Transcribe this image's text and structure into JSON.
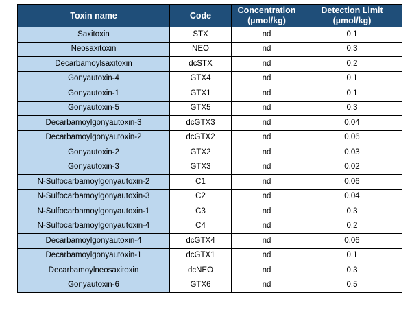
{
  "colors": {
    "header_bg": "#1F4E79",
    "header_text": "#FFFFFF",
    "name_cell_bg": "#BDD7EE",
    "border": "#000000",
    "row_bg": "#FFFFFF"
  },
  "table": {
    "headers": [
      "Toxin name",
      "Code",
      "Concentration\n(µmol/kg)",
      "Detection Limit\n(µmol/kg)"
    ],
    "rows": [
      {
        "name": "Saxitoxin",
        "code": "STX",
        "concentration": "nd",
        "detection_limit": "0.1"
      },
      {
        "name": "Neosaxitoxin",
        "code": "NEO",
        "concentration": "nd",
        "detection_limit": "0.3"
      },
      {
        "name": "Decarbamoylsaxitoxin",
        "code": "dcSTX",
        "concentration": "nd",
        "detection_limit": "0.2"
      },
      {
        "name": "Gonyautoxin-4",
        "code": "GTX4",
        "concentration": "nd",
        "detection_limit": "0.1"
      },
      {
        "name": "Gonyautoxin-1",
        "code": "GTX1",
        "concentration": "nd",
        "detection_limit": "0.1"
      },
      {
        "name": "Gonyautoxin-5",
        "code": "GTX5",
        "concentration": "nd",
        "detection_limit": "0.3"
      },
      {
        "name": "Decarbamoylgonyautoxin-3",
        "code": "dcGTX3",
        "concentration": "nd",
        "detection_limit": "0.04"
      },
      {
        "name": "Decarbamoylgonyautoxin-2",
        "code": "dcGTX2",
        "concentration": "nd",
        "detection_limit": "0.06"
      },
      {
        "name": "Gonyautoxin-2",
        "code": "GTX2",
        "concentration": "nd",
        "detection_limit": "0.03"
      },
      {
        "name": "Gonyautoxin-3",
        "code": "GTX3",
        "concentration": "nd",
        "detection_limit": "0.02"
      },
      {
        "name": "N-Sulfocarbamoylgonyautoxin-2",
        "code": "C1",
        "concentration": "nd",
        "detection_limit": "0.06"
      },
      {
        "name": "N-Sulfocarbamoylgonyautoxin-3",
        "code": "C2",
        "concentration": "nd",
        "detection_limit": "0.04"
      },
      {
        "name": "N-Sulfocarbamoylgonyautoxin-1",
        "code": "C3",
        "concentration": "nd",
        "detection_limit": "0.3"
      },
      {
        "name": "N-Sulfocarbamoylgonyautoxin-4",
        "code": "C4",
        "concentration": "nd",
        "detection_limit": "0.2"
      },
      {
        "name": "Decarbamoylgonyautoxin-4",
        "code": "dcGTX4",
        "concentration": "nd",
        "detection_limit": "0.06"
      },
      {
        "name": "Decarbamoylgonyautoxin-1",
        "code": "dcGTX1",
        "concentration": "nd",
        "detection_limit": "0.1"
      },
      {
        "name": "Decarbamoylneosaxitoxin",
        "code": "dcNEO",
        "concentration": "nd",
        "detection_limit": "0.3"
      },
      {
        "name": "Gonyautoxin-6",
        "code": "GTX6",
        "concentration": "nd",
        "detection_limit": "0.5"
      }
    ]
  }
}
